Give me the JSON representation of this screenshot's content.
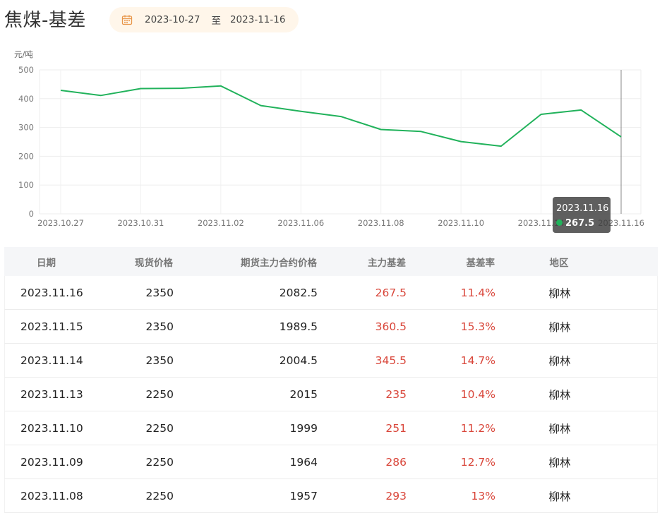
{
  "page": {
    "title": "焦煤-基差"
  },
  "date_range": {
    "start": "2023-10-27",
    "separator": "至",
    "end": "2023-11-16",
    "icon": "calendar-icon"
  },
  "colors": {
    "line": "#21b25b",
    "negative_red": "#d9463a",
    "date_bg": "#fff6ea",
    "calendar_icon": "#e8964a"
  },
  "chart_data": {
    "type": "line",
    "ylabel": "元/吨",
    "ylim": [
      0,
      500
    ],
    "yticks": [
      "0",
      "100",
      "200",
      "300",
      "400",
      "500"
    ],
    "x": [
      "2023.10.27",
      "2023.10.30",
      "2023.10.31",
      "2023.11.01",
      "2023.11.02",
      "2023.11.03",
      "2023.11.06",
      "2023.11.07",
      "2023.11.08",
      "2023.11.09",
      "2023.11.10",
      "2023.11.13",
      "2023.11.14",
      "2023.11.15",
      "2023.11.16"
    ],
    "xtick_labels": [
      "2023.10.27",
      "2023.10.31",
      "2023.11.02",
      "2023.11.06",
      "2023.11.08",
      "2023.11.10",
      "2023.11.14",
      "2023.11.16"
    ],
    "values": [
      429,
      411,
      435,
      436,
      444,
      376,
      356,
      338,
      293,
      286,
      251,
      235,
      345.5,
      360.5,
      267.5
    ],
    "grid": true,
    "tooltip": {
      "date": "2023.11.16",
      "value": "267.5"
    }
  },
  "table": {
    "headers": [
      "日期",
      "现货价格",
      "期货主力合约价格",
      "主力基差",
      "基差率",
      "地区"
    ],
    "rows": [
      [
        "2023.11.16",
        "2350",
        "2082.5",
        "267.5",
        "11.4%",
        "柳林"
      ],
      [
        "2023.11.15",
        "2350",
        "1989.5",
        "360.5",
        "15.3%",
        "柳林"
      ],
      [
        "2023.11.14",
        "2350",
        "2004.5",
        "345.5",
        "14.7%",
        "柳林"
      ],
      [
        "2023.11.13",
        "2250",
        "2015",
        "235",
        "10.4%",
        "柳林"
      ],
      [
        "2023.11.10",
        "2250",
        "1999",
        "251",
        "11.2%",
        "柳林"
      ],
      [
        "2023.11.09",
        "2250",
        "1964",
        "286",
        "12.7%",
        "柳林"
      ],
      [
        "2023.11.08",
        "2250",
        "1957",
        "293",
        "13%",
        "柳林"
      ]
    ]
  }
}
